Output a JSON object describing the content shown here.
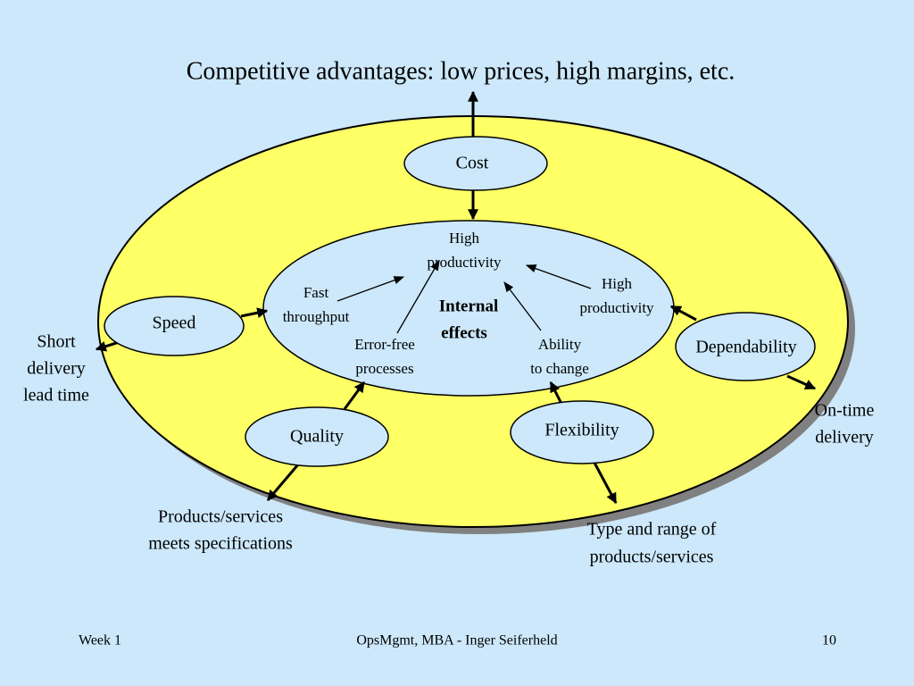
{
  "title": "Competitive advantages: low prices, high margins, etc.",
  "nodes": [
    {
      "label": "Cost"
    },
    {
      "label": "Speed"
    },
    {
      "label": "Quality"
    },
    {
      "label": "Flexibility"
    },
    {
      "label": "Dependability"
    }
  ],
  "internal": {
    "label": [
      "Internal",
      "effects"
    ],
    "items": [
      [
        "High",
        "productivity"
      ],
      [
        "Fast",
        "throughput"
      ],
      [
        "Error-free",
        "processes"
      ],
      [
        "Ability",
        "to change"
      ],
      [
        "High",
        "productivity"
      ]
    ]
  },
  "outcomes": [
    [
      "Short",
      "delivery",
      "lead time"
    ],
    [
      "Products/services",
      "meets specifications"
    ],
    [
      "Type and range of",
      "products/services"
    ],
    [
      "On-time",
      "delivery"
    ]
  ],
  "footer": {
    "left": "Week 1",
    "center": "OpsMgmt, MBA  - Inger Seiferheld",
    "right": "10"
  }
}
